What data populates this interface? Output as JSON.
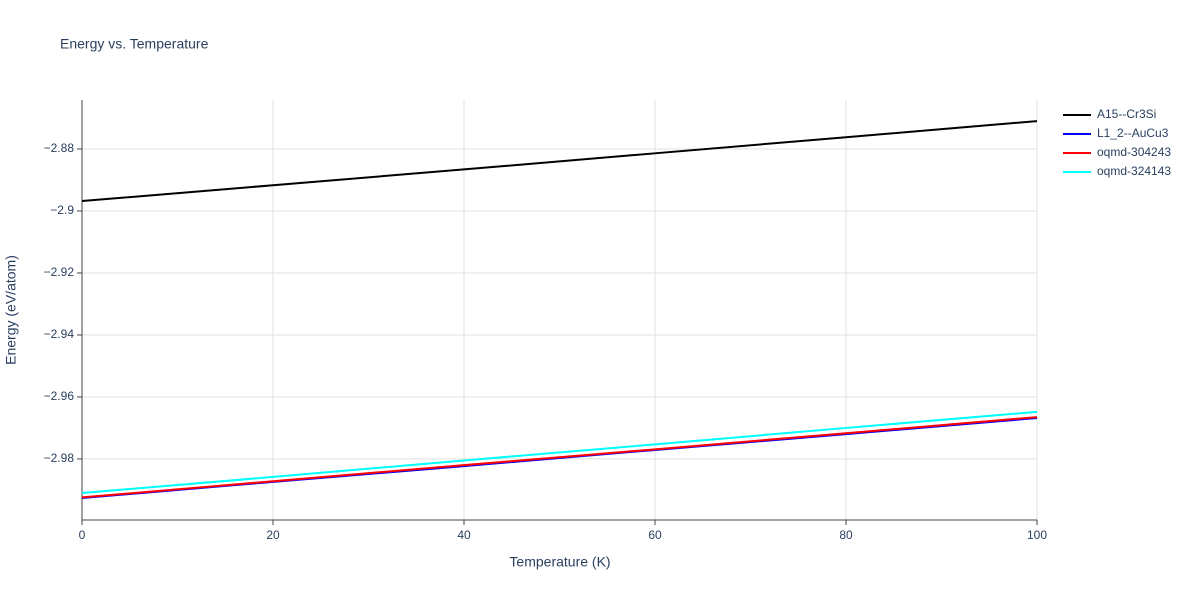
{
  "chart_data": {
    "type": "line",
    "title": "Energy vs. Temperature",
    "x_label": "Temperature (K)",
    "y_label": "Energy (eV/atom)",
    "x": [
      0,
      20,
      40,
      60,
      80,
      100
    ],
    "series": [
      {
        "name": "A15--Cr3Si",
        "color": "#000000",
        "values": [
          -2.8968,
          -2.8917,
          -2.8866,
          -2.8814,
          -2.8762,
          -2.871
        ]
      },
      {
        "name": "L1_2--AuCu3",
        "color": "#0000ff",
        "values": [
          -2.9926,
          -2.9874,
          -2.9823,
          -2.9771,
          -2.972,
          -2.9668
        ]
      },
      {
        "name": "oqmd-304243",
        "color": "#ff0000",
        "values": [
          -2.9924,
          -2.9872,
          -2.982,
          -2.9769,
          -2.9717,
          -2.9665
        ]
      },
      {
        "name": "oqmd-324143",
        "color": "#00ffff",
        "values": [
          -2.991,
          -2.9858,
          -2.9805,
          -2.9753,
          -2.97,
          -2.9648
        ]
      }
    ],
    "xlim": [
      0,
      100
    ],
    "xticks": [
      0,
      20,
      40,
      60,
      80,
      100
    ],
    "ylim": [
      -2.9997,
      -2.8642
    ],
    "yticks": [
      {
        "value": -2.98,
        "label": "−2.98"
      },
      {
        "value": -2.96,
        "label": "−2.96"
      },
      {
        "value": -2.94,
        "label": "−2.94"
      },
      {
        "value": -2.92,
        "label": "−2.92"
      },
      {
        "value": -2.9,
        "label": "−2.9"
      },
      {
        "value": -2.88,
        "label": "−2.88"
      }
    ],
    "grid": true,
    "legend": "right"
  }
}
